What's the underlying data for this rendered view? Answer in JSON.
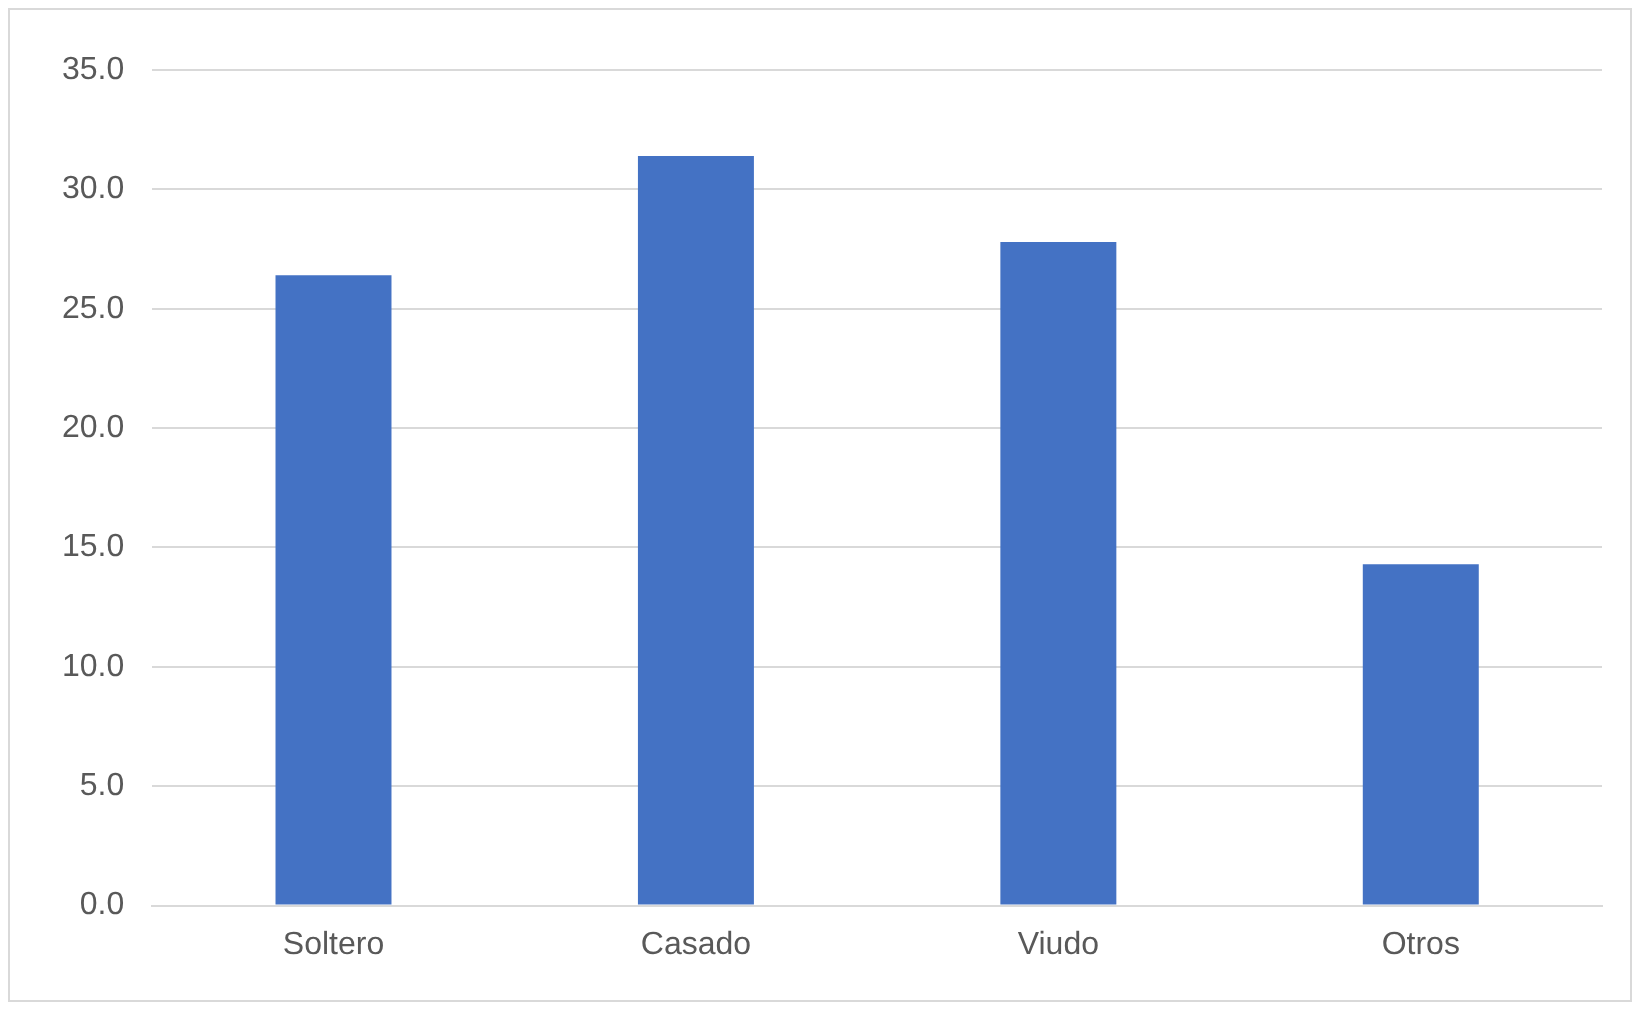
{
  "chart_data": {
    "type": "bar",
    "categories": [
      "Soltero",
      "Casado",
      "Viudo",
      "Otros"
    ],
    "values": [
      26.4,
      31.4,
      27.8,
      14.3
    ],
    "color": "#4472c4",
    "ylim": [
      0,
      35
    ],
    "yticks": [
      {
        "value": 0,
        "label": "0.0"
      },
      {
        "value": 5,
        "label": "5.0"
      },
      {
        "value": 10,
        "label": "10.0"
      },
      {
        "value": 15,
        "label": "15.0"
      },
      {
        "value": 20,
        "label": "20.0"
      },
      {
        "value": 25,
        "label": "25.0"
      },
      {
        "value": 30,
        "label": "30.0"
      },
      {
        "value": 35,
        "label": "35.0"
      }
    ],
    "grid": "y",
    "legend": false
  }
}
